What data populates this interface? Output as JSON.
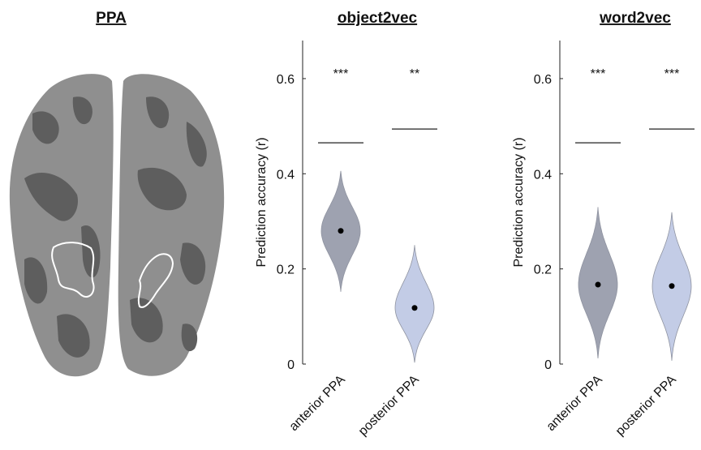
{
  "brain": {
    "title": "PPA"
  },
  "chart_data": [
    {
      "type": "violin",
      "title": "object2vec",
      "ylabel": "Prediction accuracy (r)",
      "categories": [
        "anterior PPA",
        "posterior PPA"
      ],
      "values": [
        0.28,
        0.118
      ],
      "violin_min": [
        0.152,
        0.003
      ],
      "violin_max": [
        0.406,
        0.25
      ],
      "threshold": [
        0.465,
        0.494
      ],
      "significance": [
        "***",
        "**"
      ],
      "colors": [
        "#9ea2b0",
        "#c3cce6"
      ],
      "ylim": [
        0,
        0.68
      ],
      "yticks": [
        0,
        0.2,
        0.4,
        0.6
      ]
    },
    {
      "type": "violin",
      "title": "word2vec",
      "ylabel": "Prediction accuracy (r)",
      "categories": [
        "anterior PPA",
        "posterior PPA"
      ],
      "values": [
        0.167,
        0.164
      ],
      "violin_min": [
        0.012,
        0.007
      ],
      "violin_max": [
        0.33,
        0.319
      ],
      "threshold": [
        0.465,
        0.494
      ],
      "significance": [
        "***",
        "***"
      ],
      "colors": [
        "#9ea2b0",
        "#c3cce6"
      ],
      "ylim": [
        0,
        0.68
      ],
      "yticks": [
        0,
        0.2,
        0.4,
        0.6
      ]
    }
  ]
}
